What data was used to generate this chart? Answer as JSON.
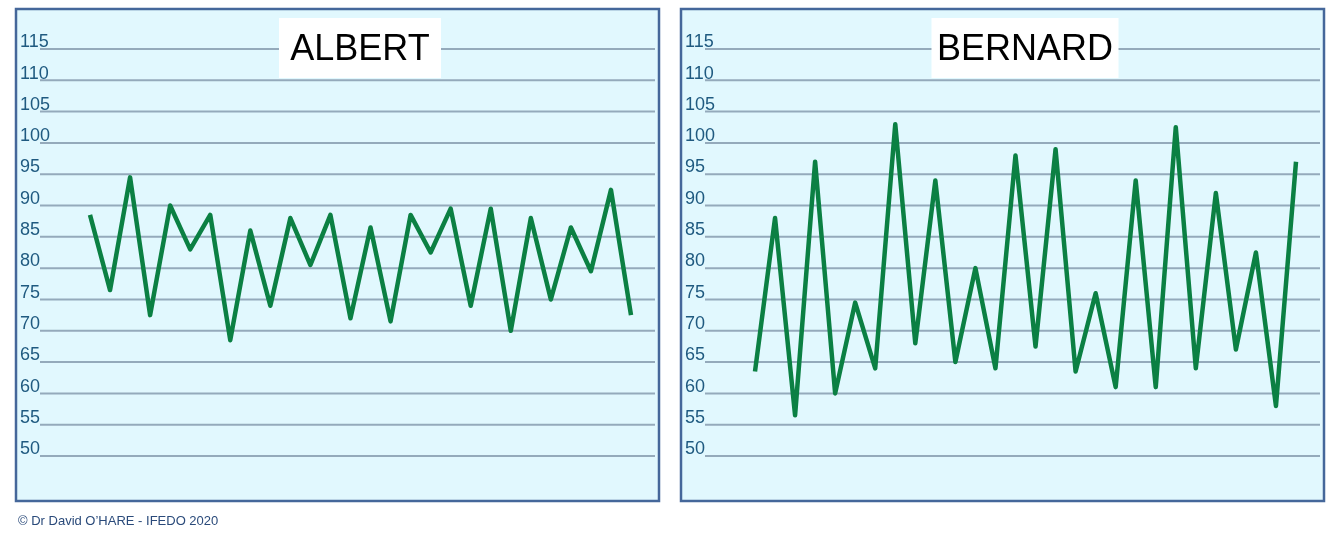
{
  "chart_data": [
    {
      "type": "line",
      "title": "ALBERT",
      "categories": [
        null,
        null,
        null,
        null,
        null,
        null,
        null,
        null,
        null,
        null,
        null,
        null,
        null,
        null,
        null,
        null,
        null,
        null,
        null,
        null,
        null,
        null,
        null,
        null,
        null,
        null,
        null,
        null
      ],
      "series": [
        {
          "color": "#0b8043",
          "values": [
            88.5,
            76.5,
            94.5,
            72.5,
            90,
            83,
            88.5,
            68.5,
            86,
            74,
            88,
            80.5,
            88.5,
            72,
            86.5,
            71.5,
            88.5,
            82.5,
            89.5,
            74,
            89.5,
            70,
            88,
            75,
            86.5,
            79.5,
            92.5,
            72.5
          ]
        }
      ],
      "ylim": [
        50,
        115
      ],
      "yticks": [
        50,
        55,
        60,
        65,
        70,
        75,
        80,
        85,
        90,
        95,
        100,
        105,
        110,
        115
      ],
      "tick_labels": "y",
      "grid": "y",
      "marker": "none",
      "line_style": "solid",
      "annotations": [
        "© Dr David O’HARE - IFEDO 2020"
      ]
    },
    {
      "type": "line",
      "title": "BERNARD",
      "categories": [
        null,
        null,
        null,
        null,
        null,
        null,
        null,
        null,
        null,
        null,
        null,
        null,
        null,
        null,
        null,
        null,
        null,
        null,
        null,
        null,
        null,
        null,
        null,
        null,
        null,
        null,
        null,
        null
      ],
      "series": [
        {
          "color": "#0b8043",
          "values": [
            63.5,
            88,
            56.5,
            97,
            60,
            74.5,
            64,
            103,
            68,
            94,
            65,
            80,
            64,
            98,
            67.5,
            99,
            63.5,
            76,
            61,
            94,
            61,
            102.5,
            64,
            92,
            67,
            82.5,
            58,
            97
          ]
        }
      ],
      "ylim": [
        50,
        115
      ],
      "yticks": [
        50,
        55,
        60,
        65,
        70,
        75,
        80,
        85,
        90,
        95,
        100,
        105,
        110,
        115
      ],
      "tick_labels": "y",
      "grid": "y",
      "marker": "none",
      "line_style": "solid"
    }
  ]
}
